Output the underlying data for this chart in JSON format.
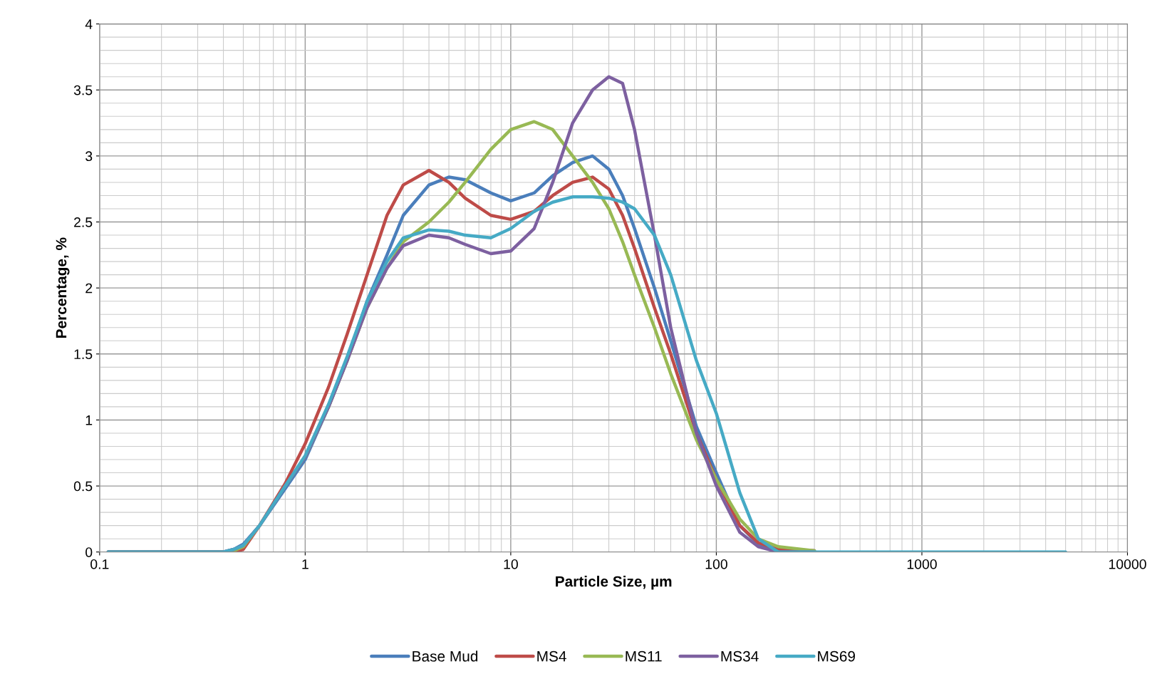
{
  "chart_data": {
    "type": "line",
    "xlabel": "Particle Size, µm",
    "ylabel": "Percentage, %",
    "log": "x",
    "grid": true,
    "legend": "bottom",
    "marker": "none",
    "line_style": "solid",
    "xlim": [
      0.1,
      10000
    ],
    "xticks": [
      0.1,
      1,
      10,
      100,
      1000,
      10000
    ],
    "ylim": [
      0,
      4
    ],
    "yticks": [
      0,
      0.5,
      1,
      1.5,
      2,
      2.5,
      3,
      3.5,
      4
    ],
    "x": [
      0.11,
      0.4,
      0.45,
      0.5,
      0.6,
      0.8,
      1,
      1.3,
      1.6,
      2,
      2.5,
      3,
      4,
      5,
      6,
      8,
      10,
      13,
      16,
      20,
      25,
      30,
      35,
      40,
      50,
      60,
      80,
      100,
      130,
      160,
      200,
      300,
      500,
      1000,
      5000
    ],
    "series": [
      {
        "name": "Base Mud",
        "color": "#4a7ebb",
        "values": [
          0,
          0,
          0.02,
          0.06,
          0.2,
          0.48,
          0.7,
          1.1,
          1.45,
          1.9,
          2.25,
          2.55,
          2.78,
          2.84,
          2.82,
          2.72,
          2.66,
          2.72,
          2.85,
          2.95,
          3.0,
          2.9,
          2.7,
          2.45,
          2.0,
          1.6,
          0.95,
          0.6,
          0.2,
          0.06,
          0.01,
          0.01,
          null,
          null,
          null
        ]
      },
      {
        "name": "MS4",
        "color": "#be4b48",
        "values": [
          0,
          0,
          0,
          0.02,
          0.2,
          0.52,
          0.82,
          1.25,
          1.65,
          2.1,
          2.55,
          2.78,
          2.89,
          2.8,
          2.68,
          2.55,
          2.52,
          2.58,
          2.7,
          2.8,
          2.84,
          2.75,
          2.55,
          2.3,
          1.85,
          1.5,
          0.9,
          0.55,
          0.2,
          0.07,
          0.02,
          0.01,
          null,
          null,
          null
        ]
      },
      {
        "name": "MS11",
        "color": "#98b954",
        "values": [
          0,
          0,
          0.01,
          0.04,
          0.2,
          0.5,
          0.72,
          1.1,
          1.45,
          1.85,
          2.15,
          2.35,
          2.5,
          2.65,
          2.8,
          3.05,
          3.2,
          3.26,
          3.2,
          3.0,
          2.8,
          2.6,
          2.35,
          2.1,
          1.7,
          1.35,
          0.85,
          0.55,
          0.25,
          0.1,
          0.04,
          0.01,
          null,
          null,
          null
        ]
      },
      {
        "name": "MS34",
        "color": "#7d60a0",
        "values": [
          0,
          0,
          0.02,
          0.05,
          0.2,
          0.5,
          0.72,
          1.1,
          1.45,
          1.85,
          2.15,
          2.32,
          2.4,
          2.38,
          2.33,
          2.26,
          2.28,
          2.45,
          2.8,
          3.25,
          3.5,
          3.6,
          3.55,
          3.2,
          2.4,
          1.7,
          0.9,
          0.5,
          0.15,
          0.04,
          0,
          0,
          null,
          null,
          null
        ]
      },
      {
        "name": "MS69",
        "color": "#46aac5",
        "values": [
          0,
          0,
          0.02,
          0.05,
          0.2,
          0.5,
          0.73,
          1.12,
          1.48,
          1.9,
          2.2,
          2.38,
          2.44,
          2.43,
          2.4,
          2.38,
          2.45,
          2.58,
          2.65,
          2.69,
          2.69,
          2.68,
          2.65,
          2.6,
          2.4,
          2.1,
          1.45,
          1.05,
          0.45,
          0.1,
          0,
          0,
          0,
          0,
          0
        ]
      }
    ]
  }
}
